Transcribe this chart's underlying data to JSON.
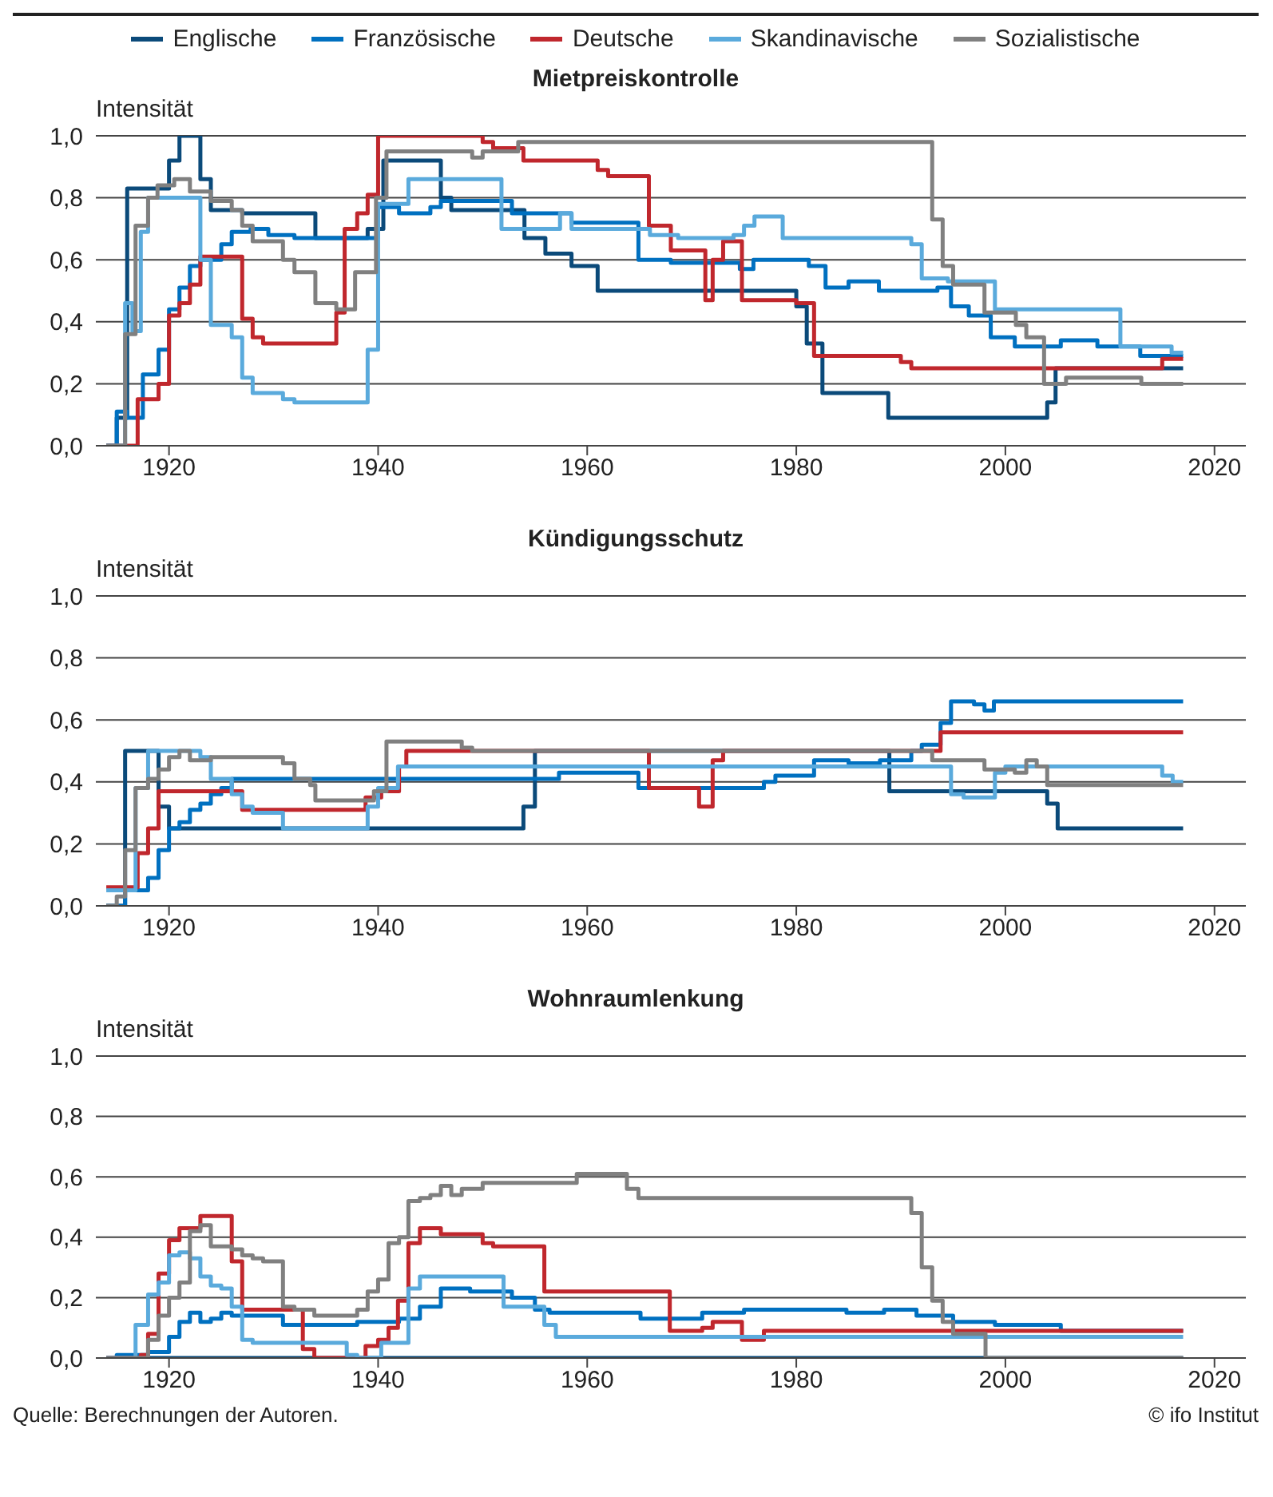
{
  "chart_data": [
    {
      "type": "step",
      "title": "Mietpreiskontrolle",
      "ylabel": "Intensität",
      "legend": "top",
      "grid": "y",
      "xlim": [
        1913,
        2023
      ],
      "xticks": [
        1920,
        1940,
        1960,
        1980,
        2000,
        2020
      ],
      "ylim": [
        0,
        1
      ],
      "yticks": [
        {
          "value": 0,
          "label": "0,0"
        },
        {
          "value": 0.2,
          "label": "0,2"
        },
        {
          "value": 0.4,
          "label": "0,4"
        },
        {
          "value": 0.6,
          "label": "0,6"
        },
        {
          "value": 0.8,
          "label": "0,8"
        },
        {
          "value": 1,
          "label": "1,0"
        }
      ],
      "series": [
        {
          "name": "Englische",
          "color": "#0b4a7a",
          "x": [
            1914,
            1915,
            1916,
            1920,
            1921,
            1923,
            1924,
            1927,
            1934,
            1939,
            1940.5,
            1946,
            1947,
            1954,
            1956,
            1957,
            1958.5,
            1961,
            1980,
            1981,
            1982.5,
            1988.8,
            2004,
            2004.8,
            2017
          ],
          "values": [
            0,
            0.09,
            0.83,
            0.92,
            1.0,
            0.86,
            0.76,
            0.75,
            0.67,
            0.7,
            0.92,
            0.8,
            0.76,
            0.67,
            0.62,
            0.62,
            0.58,
            0.5,
            0.45,
            0.33,
            0.17,
            0.09,
            0.14,
            0.25,
            0.25
          ]
        },
        {
          "name": "Französische",
          "color": "#0070c0",
          "x": [
            1914,
            1915,
            1916,
            1917.5,
            1919,
            1920,
            1921,
            1922,
            1923,
            1925,
            1926,
            1927.8,
            1929.5,
            1932,
            1940,
            1942,
            1945,
            1946,
            1952.8,
            1958.5,
            1964.9,
            1968,
            1974.6,
            1975.9,
            1981.2,
            1982.8,
            1985,
            1987.9,
            1993.5,
            1994.8,
            1996.5,
            1998.6,
            2000.9,
            2005.3,
            2008.8,
            2012.9,
            2017
          ],
          "values": [
            0,
            0.11,
            0.09,
            0.23,
            0.31,
            0.44,
            0.51,
            0.58,
            0.6,
            0.65,
            0.69,
            0.7,
            0.68,
            0.67,
            0.77,
            0.75,
            0.77,
            0.79,
            0.75,
            0.72,
            0.6,
            0.59,
            0.57,
            0.6,
            0.58,
            0.51,
            0.53,
            0.5,
            0.51,
            0.45,
            0.42,
            0.35,
            0.32,
            0.34,
            0.32,
            0.29,
            0.29
          ]
        },
        {
          "name": "Deutsche",
          "color": "#c0272d",
          "x": [
            1914,
            1917,
            1919,
            1920,
            1921,
            1922,
            1923,
            1927,
            1928,
            1929,
            1936,
            1936.8,
            1938,
            1939,
            1940,
            1950,
            1951,
            1953.9,
            1961,
            1962,
            1965.9,
            1968,
            1971.3,
            1972,
            1973,
            1974.8,
            1980,
            1981.7,
            1990,
            1991,
            2015,
            2017
          ],
          "values": [
            0,
            0.15,
            0.2,
            0.42,
            0.46,
            0.52,
            0.61,
            0.41,
            0.35,
            0.33,
            0.43,
            0.7,
            0.75,
            0.81,
            1.0,
            0.98,
            0.96,
            0.92,
            0.89,
            0.87,
            0.71,
            0.63,
            0.47,
            0.6,
            0.66,
            0.47,
            0.46,
            0.29,
            0.27,
            0.25,
            0.28,
            0.28
          ]
        },
        {
          "name": "Skandinavische",
          "color": "#5aaadc",
          "x": [
            1914,
            1915.8,
            1916.5,
            1917.3,
            1918,
            1923,
            1924,
            1926,
            1927,
            1928,
            1930.9,
            1932,
            1939,
            1940,
            1942.9,
            1951.8,
            1957.4,
            1958.5,
            1966,
            1968.7,
            1974,
            1975,
            1976,
            1978.7,
            1991,
            1992,
            1994.5,
            1999,
            2011,
            2015.9,
            2017
          ],
          "values": [
            0,
            0.46,
            0.37,
            0.69,
            0.8,
            0.6,
            0.39,
            0.35,
            0.22,
            0.17,
            0.15,
            0.14,
            0.31,
            0.78,
            0.86,
            0.7,
            0.75,
            0.7,
            0.68,
            0.67,
            0.68,
            0.71,
            0.74,
            0.67,
            0.65,
            0.54,
            0.53,
            0.44,
            0.32,
            0.3,
            0.3
          ]
        },
        {
          "name": "Sozialistische",
          "color": "#808080",
          "x": [
            1914,
            1915.8,
            1916.8,
            1918,
            1918.9,
            1920.5,
            1922,
            1924,
            1926,
            1927,
            1928,
            1930.9,
            1932,
            1934,
            1936,
            1937.8,
            1939.8,
            1940.8,
            1949,
            1950,
            1953.4,
            1993,
            1994,
            1995,
            1998,
            2001,
            2002,
            2003.7,
            2005.8,
            2013,
            2017
          ],
          "values": [
            0,
            0.36,
            0.71,
            0.8,
            0.84,
            0.86,
            0.82,
            0.79,
            0.76,
            0.71,
            0.66,
            0.6,
            0.56,
            0.46,
            0.44,
            0.56,
            0.8,
            0.95,
            0.93,
            0.95,
            0.98,
            0.73,
            0.58,
            0.52,
            0.43,
            0.39,
            0.35,
            0.2,
            0.22,
            0.2,
            0.2
          ]
        }
      ]
    },
    {
      "type": "step",
      "title": "Kündigungsschutz",
      "ylabel": "Intensität",
      "grid": "y",
      "xlim": [
        1913,
        2023
      ],
      "xticks": [
        1920,
        1940,
        1960,
        1980,
        2000,
        2020
      ],
      "ylim": [
        0,
        1
      ],
      "yticks": [
        {
          "value": 0,
          "label": "0,0"
        },
        {
          "value": 0.2,
          "label": "0,2"
        },
        {
          "value": 0.4,
          "label": "0,4"
        },
        {
          "value": 0.6,
          "label": "0,6"
        },
        {
          "value": 0.8,
          "label": "0,8"
        },
        {
          "value": 1,
          "label": "1,0"
        }
      ],
      "series": [
        {
          "color": "#0b4a7a",
          "x": [
            1914,
            1915.8,
            1919,
            1920,
            1953.9,
            1955,
            1988.9,
            2004,
            2005,
            2017
          ],
          "values": [
            0,
            0.5,
            0.32,
            0.25,
            0.32,
            0.5,
            0.37,
            0.33,
            0.25,
            0.25
          ]
        },
        {
          "color": "#0070c0",
          "x": [
            1914,
            1915.8,
            1918,
            1919,
            1920,
            1921,
            1922,
            1923,
            1924,
            1925,
            1926,
            1957.3,
            1964.9,
            1976.9,
            1978,
            1981.7,
            1985,
            1988,
            1991,
            1992,
            1993.8,
            1994.8,
            1997,
            1998,
            1998.9,
            2017
          ],
          "values": [
            0,
            0.05,
            0.09,
            0.18,
            0.25,
            0.27,
            0.31,
            0.33,
            0.36,
            0.38,
            0.41,
            0.43,
            0.38,
            0.4,
            0.42,
            0.47,
            0.46,
            0.47,
            0.5,
            0.52,
            0.59,
            0.66,
            0.65,
            0.63,
            0.66,
            0.66
          ]
        },
        {
          "color": "#c0272d",
          "x": [
            1914,
            1917,
            1918,
            1919,
            1927,
            1938.8,
            1940.3,
            1942,
            1942.7,
            1965.9,
            1970.7,
            1972,
            1973,
            1993.8,
            2017
          ],
          "values": [
            0.06,
            0.17,
            0.25,
            0.37,
            0.31,
            0.35,
            0.37,
            0.45,
            0.5,
            0.38,
            0.32,
            0.47,
            0.5,
            0.56,
            0.56
          ]
        },
        {
          "color": "#5aaadc",
          "x": [
            1914,
            1916.8,
            1918,
            1923,
            1924,
            1926,
            1927,
            1928,
            1930.9,
            1939,
            1940,
            1941.9,
            1994.8,
            1996,
            1999,
            2000,
            2015,
            2016,
            2017
          ],
          "values": [
            0.05,
            0.38,
            0.5,
            0.48,
            0.41,
            0.36,
            0.32,
            0.3,
            0.25,
            0.32,
            0.38,
            0.45,
            0.36,
            0.35,
            0.43,
            0.45,
            0.42,
            0.4,
            0.4
          ]
        },
        {
          "color": "#808080",
          "x": [
            1914,
            1915,
            1915.8,
            1916.8,
            1918,
            1919,
            1920,
            1921,
            1922,
            1924,
            1930.9,
            1932,
            1933.5,
            1934,
            1939.6,
            1940.8,
            1948,
            1949,
            1993,
            1998,
            2000.9,
            2002,
            2003,
            2004,
            2017
          ],
          "values": [
            0,
            0.03,
            0.18,
            0.38,
            0.41,
            0.44,
            0.48,
            0.5,
            0.47,
            0.48,
            0.46,
            0.41,
            0.39,
            0.34,
            0.37,
            0.53,
            0.51,
            0.5,
            0.47,
            0.44,
            0.43,
            0.47,
            0.45,
            0.39,
            0.39
          ]
        }
      ]
    },
    {
      "type": "step",
      "title": "Wohnraumlenkung",
      "ylabel": "Intensität",
      "grid": "y",
      "xlim": [
        1913,
        2023
      ],
      "xticks": [
        1920,
        1940,
        1960,
        1980,
        2000,
        2020
      ],
      "ylim": [
        0,
        1
      ],
      "yticks": [
        {
          "value": 0,
          "label": "0,0"
        },
        {
          "value": 0.2,
          "label": "0,2"
        },
        {
          "value": 0.4,
          "label": "0,4"
        },
        {
          "value": 0.6,
          "label": "0,6"
        },
        {
          "value": 0.8,
          "label": "0,8"
        },
        {
          "value": 1,
          "label": "1,0"
        }
      ],
      "annotations": [
        "Quelle: Berechnungen der Autoren.",
        "© ifo Institut"
      ],
      "series": [
        {
          "color": "#0b4a7a",
          "x": [
            1914,
            2017
          ],
          "values": [
            0,
            0
          ]
        },
        {
          "color": "#0070c0",
          "x": [
            1914,
            1915,
            1918,
            1920,
            1921,
            1922,
            1923,
            1924,
            1925,
            1926,
            1930.9,
            1938,
            1942,
            1944,
            1946,
            1948.8,
            1952.8,
            1955,
            1956.4,
            1965.1,
            1971,
            1975,
            1984.8,
            1988.4,
            1991.5,
            1995,
            1999,
            2005.3,
            2017
          ],
          "values": [
            0,
            0.01,
            0.02,
            0.07,
            0.12,
            0.15,
            0.12,
            0.13,
            0.15,
            0.14,
            0.11,
            0.12,
            0.13,
            0.17,
            0.23,
            0.22,
            0.2,
            0.16,
            0.15,
            0.13,
            0.15,
            0.16,
            0.15,
            0.16,
            0.14,
            0.12,
            0.11,
            0.09,
            0.09
          ]
        },
        {
          "color": "#c0272d",
          "x": [
            1914,
            1917.3,
            1918,
            1919,
            1920,
            1921,
            1923,
            1926,
            1927,
            1932.8,
            1933.9,
            1938.8,
            1940,
            1941,
            1941.9,
            1942.9,
            1944,
            1946,
            1950,
            1951,
            1955.9,
            1967.9,
            1971,
            1972,
            1974.8,
            1976.9,
            2017
          ],
          "values": [
            0,
            0.01,
            0.08,
            0.28,
            0.39,
            0.43,
            0.47,
            0.32,
            0.16,
            0.03,
            0,
            0.04,
            0.06,
            0.1,
            0.19,
            0.38,
            0.43,
            0.41,
            0.38,
            0.37,
            0.22,
            0.09,
            0.1,
            0.12,
            0.06,
            0.09,
            0.09
          ]
        },
        {
          "color": "#5aaadc",
          "x": [
            1914,
            1916.8,
            1918,
            1919,
            1920,
            1921,
            1922,
            1923,
            1924,
            1925,
            1926,
            1927,
            1928,
            1937,
            1938,
            1940.3,
            1942.9,
            1944,
            1952,
            1955.9,
            1957,
            2017
          ],
          "values": [
            0,
            0.11,
            0.21,
            0.25,
            0.34,
            0.35,
            0.33,
            0.27,
            0.24,
            0.23,
            0.17,
            0.06,
            0.05,
            0.01,
            0,
            0.05,
            0.23,
            0.27,
            0.17,
            0.11,
            0.07,
            0.07
          ]
        },
        {
          "color": "#808080",
          "x": [
            1914,
            1918,
            1919,
            1920,
            1921,
            1922,
            1923,
            1924,
            1926,
            1927,
            1928,
            1929,
            1930.9,
            1932,
            1933.9,
            1938,
            1939,
            1940,
            1941,
            1942,
            1942.9,
            1944,
            1945,
            1946,
            1947,
            1948,
            1950,
            1959,
            1963.8,
            1964.9,
            1991,
            1992,
            1993,
            1994,
            1995,
            1998.1,
            2017
          ],
          "values": [
            0,
            0.06,
            0.14,
            0.2,
            0.25,
            0.42,
            0.44,
            0.37,
            0.36,
            0.34,
            0.33,
            0.32,
            0.17,
            0.16,
            0.14,
            0.16,
            0.22,
            0.26,
            0.38,
            0.4,
            0.52,
            0.53,
            0.54,
            0.57,
            0.54,
            0.56,
            0.58,
            0.61,
            0.56,
            0.53,
            0.48,
            0.3,
            0.19,
            0.12,
            0.08,
            0,
            0
          ]
        }
      ]
    }
  ]
}
